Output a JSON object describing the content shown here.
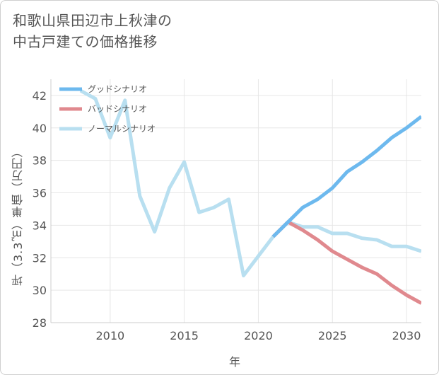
{
  "title": "和歌山県田辺市上秋津の\n中古戸建ての価格推移",
  "chart_data": {
    "type": "line",
    "xlabel": "年",
    "ylabel": "坪（3.3㎡）単価（万円）",
    "xlim": [
      2006,
      2031
    ],
    "ylim": [
      28,
      43
    ],
    "xticks": [
      2010,
      2015,
      2020,
      2025,
      2030
    ],
    "yticks": [
      28,
      30,
      32,
      34,
      36,
      38,
      40,
      42
    ],
    "grid": true,
    "legend_position": "top-left",
    "series": [
      {
        "name": "グッドシナリオ",
        "color": "#6db9ee",
        "x": [
          2021,
          2022,
          2023,
          2024,
          2025,
          2026,
          2027,
          2028,
          2029,
          2030,
          2031
        ],
        "y": [
          33.3,
          34.2,
          35.1,
          35.6,
          36.3,
          37.3,
          37.9,
          38.6,
          39.4,
          40.0,
          40.7
        ]
      },
      {
        "name": "バッドシナリオ",
        "color": "#e0898e",
        "x": [
          2021,
          2022,
          2023,
          2024,
          2025,
          2026,
          2027,
          2028,
          2029,
          2030,
          2031
        ],
        "y": [
          33.3,
          34.2,
          33.7,
          33.1,
          32.4,
          31.9,
          31.4,
          31.0,
          30.3,
          29.7,
          29.2
        ]
      },
      {
        "name": "ノーマルシナリオ",
        "color": "#b8dff0",
        "x": [
          2008,
          2009,
          2010,
          2011,
          2012,
          2013,
          2014,
          2015,
          2016,
          2017,
          2018,
          2019,
          2020,
          2021,
          2022,
          2023,
          2024,
          2025,
          2026,
          2027,
          2028,
          2029,
          2030,
          2031
        ],
        "y": [
          42.3,
          41.8,
          39.4,
          41.7,
          35.8,
          33.6,
          36.3,
          37.9,
          34.8,
          35.1,
          35.6,
          30.9,
          32.1,
          33.3,
          34.2,
          33.9,
          33.9,
          33.5,
          33.5,
          33.2,
          33.1,
          32.7,
          32.7,
          32.4
        ]
      }
    ]
  }
}
